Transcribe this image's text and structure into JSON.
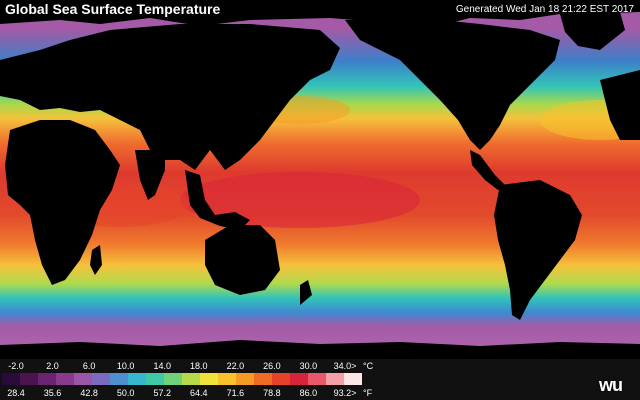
{
  "header": {
    "title": "Global Sea Surface Temperature",
    "generated": "Generated Wed Jan 18 21:22 EST 2017"
  },
  "legend": {
    "celsius_ticks": [
      "-2.0",
      "2.0",
      "6.0",
      "10.0",
      "14.0",
      "18.0",
      "22.0",
      "26.0",
      "30.0",
      "34.0>"
    ],
    "celsius_unit": "°C",
    "fahrenheit_ticks": [
      "28.4",
      "35.6",
      "42.8",
      "50.0",
      "57.2",
      "64.4",
      "71.6",
      "78.8",
      "86.0",
      "93.2>"
    ],
    "fahrenheit_unit": "°F",
    "colors": [
      "#2a0a3a",
      "#4b1450",
      "#6a2370",
      "#8a3a8c",
      "#9a55a8",
      "#7a6ac0",
      "#4f8fd0",
      "#37b6cf",
      "#3ec8a8",
      "#6fd27a",
      "#b6db4a",
      "#f1e23a",
      "#f7c22c",
      "#f59a24",
      "#ef6c25",
      "#e6412a",
      "#d8233a",
      "#e8576a",
      "#f5a0a8",
      "#ffe6e6"
    ]
  },
  "logo": {
    "text": "wu"
  },
  "colors": {
    "polar": "#a45aa6",
    "subpolar": "#3d7fc8",
    "temperate": "#32c4b8",
    "subtropical": "#a8d84c",
    "warm": "#f5c23c",
    "tropical": "#ef6c2e",
    "hot": "#de3a2e",
    "land": "#000000",
    "legend_bg": "#111111"
  }
}
